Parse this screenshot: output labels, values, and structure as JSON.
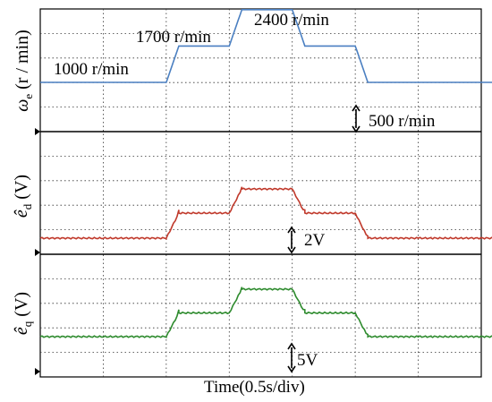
{
  "chart_data": [
    {
      "type": "line",
      "ylabel": "ωe (r / min)",
      "series": [
        {
          "color": "#4a7fc1",
          "x": [
            0,
            1.0,
            1.1,
            1.5,
            1.6,
            2.0,
            2.1,
            2.5,
            2.6,
            3.0,
            3.1,
            5.0
          ],
          "y": [
            1000,
            1000,
            1700,
            1700,
            2400,
            2400,
            1700,
            1700,
            1000,
            1000,
            1000,
            1000
          ]
        }
      ],
      "annotations": [
        "1000 r/min",
        "1700 r/min",
        "2400 r/min",
        "500 r/min"
      ]
    },
    {
      "type": "line",
      "ylabel": "êd (V)",
      "series": [
        {
          "color": "#c0392b",
          "x": [
            0,
            1.0,
            1.1,
            1.5,
            1.6,
            2.0,
            2.1,
            2.5,
            2.6,
            3.0,
            3.1,
            5.0
          ],
          "y": [
            0.1,
            0.1,
            2.7,
            2.7,
            5.2,
            5.2,
            2.7,
            2.7,
            0.1,
            0.1,
            0.1,
            0.1
          ]
        }
      ],
      "annotations": [
        "2V"
      ]
    },
    {
      "type": "line",
      "ylabel": "êq (V)",
      "series": [
        {
          "color": "#2e8b2e",
          "x": [
            0,
            1.0,
            1.1,
            1.5,
            1.6,
            2.0,
            2.1,
            2.5,
            2.6,
            3.0,
            3.1,
            5.0
          ],
          "y": [
            2,
            2,
            9,
            9,
            16,
            16,
            9,
            9,
            2,
            2,
            2,
            2
          ]
        }
      ],
      "annotations": [
        "5V"
      ]
    }
  ],
  "xlabel": "Time(0.5s/div)"
}
